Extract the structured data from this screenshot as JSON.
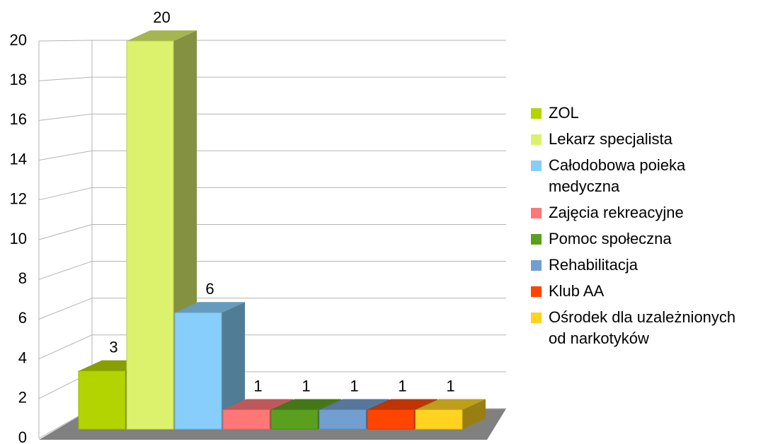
{
  "chart_data": {
    "type": "bar3d",
    "categories": [
      null
    ],
    "series": [
      {
        "name": "ZOL",
        "color": "#b4d400",
        "values": [
          3
        ]
      },
      {
        "name": "Lekarz specjalista",
        "color": "#dcf26c",
        "values": [
          20
        ]
      },
      {
        "name": "Całodobowa poieka medyczna",
        "color": "#87cefa",
        "values": [
          6
        ]
      },
      {
        "name": "Zajęcia rekreacyjne",
        "color": "#ff7777",
        "values": [
          1
        ]
      },
      {
        "name": "Pomoc społeczna",
        "color": "#5aa01e",
        "values": [
          1
        ]
      },
      {
        "name": "Rehabilitacja",
        "color": "#729fcf",
        "values": [
          1
        ]
      },
      {
        "name": "Klub AA",
        "color": "#ff4500",
        "values": [
          1
        ]
      },
      {
        "name": "Ośrodek dla uzależnionych od narkotyków",
        "color": "#ffd320",
        "values": [
          1
        ]
      }
    ],
    "ylim": [
      0,
      20
    ],
    "yticks": [
      0,
      2,
      4,
      6,
      8,
      10,
      12,
      14,
      16,
      18,
      20
    ],
    "grid": true,
    "legend": "right"
  }
}
